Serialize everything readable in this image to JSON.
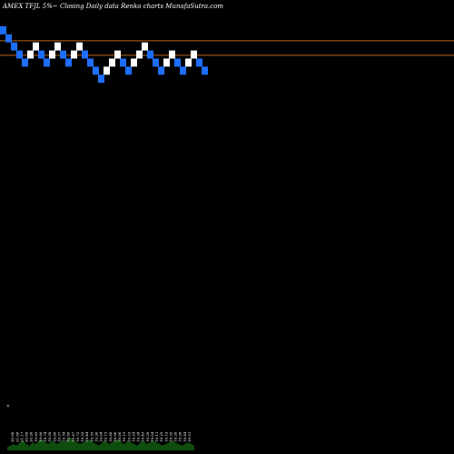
{
  "chart_data": {
    "type": "renko",
    "title": "AMEX  TFJL  5%~  Closing  Daily data  Renko  charts MunafaSutra.com",
    "background_color": "#000000",
    "up_brick_color": "#ffffff",
    "down_brick_color": "#1e6fff",
    "reference_line_color": "#b5651d",
    "volume_area_color": "#0f4d0f",
    "reference_lines": [
      19.6,
      19.15
    ],
    "ylim": [
      8.5,
      20.3
    ],
    "bricks": [
      {
        "dir": "down",
        "top": 20.05
      },
      {
        "dir": "down",
        "top": 19.8
      },
      {
        "dir": "down",
        "top": 19.55
      },
      {
        "dir": "down",
        "top": 19.3
      },
      {
        "dir": "down",
        "top": 19.05
      },
      {
        "dir": "up",
        "top": 19.3
      },
      {
        "dir": "up",
        "top": 19.55
      },
      {
        "dir": "down",
        "top": 19.3
      },
      {
        "dir": "down",
        "top": 19.05
      },
      {
        "dir": "up",
        "top": 19.3
      },
      {
        "dir": "up",
        "top": 19.55
      },
      {
        "dir": "down",
        "top": 19.3
      },
      {
        "dir": "down",
        "top": 19.05
      },
      {
        "dir": "up",
        "top": 19.3
      },
      {
        "dir": "up",
        "top": 19.55
      },
      {
        "dir": "down",
        "top": 19.3
      },
      {
        "dir": "down",
        "top": 19.05
      },
      {
        "dir": "down",
        "top": 18.8
      },
      {
        "dir": "down",
        "top": 18.55
      },
      {
        "dir": "up",
        "top": 18.8
      },
      {
        "dir": "up",
        "top": 19.05
      },
      {
        "dir": "up",
        "top": 19.3
      },
      {
        "dir": "down",
        "top": 19.05
      },
      {
        "dir": "down",
        "top": 18.8
      },
      {
        "dir": "up",
        "top": 19.05
      },
      {
        "dir": "up",
        "top": 19.3
      },
      {
        "dir": "up",
        "top": 19.55
      },
      {
        "dir": "down",
        "top": 19.3
      },
      {
        "dir": "down",
        "top": 19.05
      },
      {
        "dir": "down",
        "top": 18.8
      },
      {
        "dir": "up",
        "top": 19.05
      },
      {
        "dir": "up",
        "top": 19.3
      },
      {
        "dir": "down",
        "top": 19.05
      },
      {
        "dir": "down",
        "top": 18.8
      },
      {
        "dir": "up",
        "top": 19.05
      },
      {
        "dir": "up",
        "top": 19.3
      },
      {
        "dir": "down",
        "top": 19.05
      },
      {
        "dir": "down",
        "top": 18.8
      }
    ],
    "price_labels": [
      "6",
      "20.08",
      "21.08",
      "21.17",
      "20.69",
      "20.26",
      "19.85",
      "19.66",
      "19.74",
      "19.59",
      "19.68",
      "19.37",
      "19.54",
      "19.86",
      "19.87",
      "19.72",
      "19.53",
      "19.44",
      "19.35",
      "19.26",
      "19.04",
      "19.15",
      "18.88",
      "18.96",
      "19.06",
      "19.15",
      "19.23",
      "19.24",
      "19.34",
      "19.43",
      "19.29",
      "19.04",
      "19.11",
      "19.25",
      "19.19",
      "19.35",
      "19.28",
      "19.36",
      "19.44",
      "19.51"
    ],
    "volumes": [
      2,
      3,
      4,
      3,
      5,
      6,
      4,
      3,
      5,
      4,
      6,
      7,
      5,
      4,
      6,
      5,
      4,
      6,
      5,
      7,
      8,
      6,
      5,
      4,
      5,
      6,
      7,
      5,
      4,
      3,
      5,
      6,
      4,
      5,
      6,
      7,
      5,
      4,
      6,
      5,
      4,
      3,
      5,
      6,
      4,
      5,
      6,
      5,
      4,
      3,
      4,
      5,
      6,
      5,
      4,
      3,
      4,
      5,
      4,
      3
    ]
  }
}
